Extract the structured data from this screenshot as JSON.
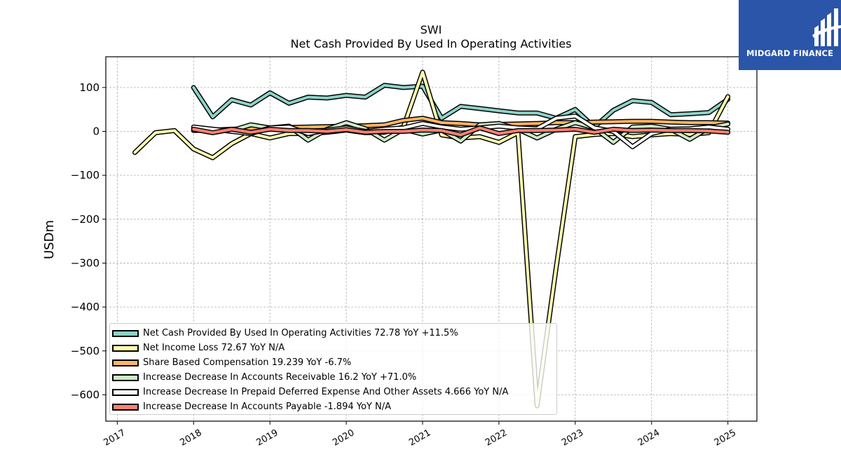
{
  "brand": {
    "logo_text": "MIDGARD FINANCE",
    "logo_color": "#2a55a8"
  },
  "chart_data": {
    "type": "line",
    "title": "SWI",
    "subtitle": "Net Cash Provided By Used In Operating Activities",
    "ylabel": "USDm",
    "xlabel": "",
    "ylim": [
      -660,
      170
    ],
    "xlim": [
      2016.85,
      2025.38
    ],
    "xticks": [
      2017,
      2018,
      2019,
      2020,
      2021,
      2022,
      2023,
      2024,
      2025
    ],
    "xtick_labels": [
      "2017",
      "2018",
      "2019",
      "2020",
      "2021",
      "2022",
      "2023",
      "2024",
      "2025"
    ],
    "yticks": [
      100,
      0,
      -100,
      -200,
      -300,
      -400,
      -500,
      -600
    ],
    "ytick_labels": [
      "100",
      "0",
      "−100",
      "−200",
      "−300",
      "−400",
      "−500",
      "−600"
    ],
    "grid": true,
    "legend_position": "lower-left",
    "series": [
      {
        "name": "Net Cash Provided By Used In Operating Activities",
        "legend": "Net Cash Provided By Used In Operating Activities  72.78 YoY +11.5%",
        "color": "#8dd3c7",
        "x": [
          2018.0,
          2018.25,
          2018.5,
          2018.75,
          2019.0,
          2019.25,
          2019.5,
          2019.75,
          2020.0,
          2020.25,
          2020.5,
          2020.75,
          2021.0,
          2021.25,
          2021.5,
          2021.75,
          2022.0,
          2022.25,
          2022.5,
          2022.75,
          2023.0,
          2023.25,
          2023.5,
          2023.75,
          2024.0,
          2024.25,
          2024.5,
          2024.75,
          2025.0
        ],
        "y": [
          100,
          33,
          72,
          60,
          88,
          64,
          78,
          76,
          82,
          78,
          105,
          100,
          103,
          30,
          57,
          52,
          47,
          42,
          42,
          30,
          50,
          10,
          48,
          70,
          66,
          38,
          40,
          43,
          73
        ]
      },
      {
        "name": "Net Income Loss",
        "legend": "Net Income Loss  72.67 YoY N/A",
        "color": "#ffffb3",
        "x": [
          2017.23,
          2017.5,
          2017.75,
          2018.0,
          2018.25,
          2018.5,
          2018.75,
          2019.0,
          2019.25,
          2019.5,
          2019.75,
          2020.0,
          2020.25,
          2020.5,
          2020.75,
          2021.0,
          2021.25,
          2021.5,
          2021.75,
          2022.0,
          2022.25,
          2022.5,
          2022.75,
          2023.0,
          2023.25,
          2023.5,
          2023.75,
          2024.0,
          2024.25,
          2024.5,
          2024.75,
          2025.0
        ],
        "y": [
          -48,
          -3,
          2,
          -40,
          -60,
          -28,
          -5,
          -15,
          -5,
          -5,
          -2,
          3,
          -3,
          -2,
          10,
          135,
          -8,
          -15,
          -12,
          -25,
          -3,
          -625,
          -310,
          -12,
          -7,
          -5,
          -12,
          -8,
          -5,
          -7,
          -3,
          79
        ]
      },
      {
        "name": "Share Based Compensation",
        "legend": "Share Based Compensation  19.239 YoY -6.7%",
        "color": "#fdb462",
        "x": [
          2018.0,
          2018.25,
          2018.5,
          2018.75,
          2019.0,
          2019.25,
          2019.5,
          2019.75,
          2020.0,
          2020.25,
          2020.5,
          2020.75,
          2021.0,
          2021.25,
          2021.5,
          2021.75,
          2022.0,
          2022.25,
          2022.5,
          2022.75,
          2023.0,
          2023.25,
          2023.5,
          2023.75,
          2024.0,
          2024.25,
          2024.5,
          2024.75,
          2025.0
        ],
        "y": [
          2,
          3,
          5,
          6,
          8,
          9,
          10,
          11,
          12,
          13,
          15,
          25,
          30,
          20,
          18,
          15,
          16,
          17,
          18,
          20,
          20,
          21,
          22,
          23,
          23,
          21,
          20,
          20,
          19
        ]
      },
      {
        "name": "Increase Decrease In Accounts Receivable",
        "legend": "Increase Decrease In Accounts Receivable  16.2 YoY +71.0%",
        "color": "#ccebc5",
        "x": [
          2018.0,
          2018.25,
          2018.5,
          2018.75,
          2019.0,
          2019.25,
          2019.5,
          2019.75,
          2020.0,
          2020.25,
          2020.5,
          2020.75,
          2021.0,
          2021.25,
          2021.5,
          2021.75,
          2022.0,
          2022.25,
          2022.5,
          2022.75,
          2023.0,
          2023.25,
          2023.5,
          2023.75,
          2024.0,
          2024.25,
          2024.5,
          2024.75,
          2025.0
        ],
        "y": [
          6,
          4,
          2,
          15,
          8,
          12,
          -20,
          5,
          20,
          6,
          -20,
          5,
          -6,
          3,
          -22,
          15,
          18,
          5,
          -15,
          5,
          20,
          8,
          -25,
          10,
          12,
          5,
          -18,
          8,
          17
        ]
      },
      {
        "name": "Increase Decrease In Prepaid Deferred Expense And Other Assets",
        "legend": "Increase Decrease In Prepaid Deferred Expense And Other Assets  4.666 YoY N/A",
        "color": "#ffffff",
        "x": [
          2018.0,
          2018.25,
          2018.5,
          2018.75,
          2019.0,
          2019.25,
          2019.5,
          2019.75,
          2020.0,
          2020.25,
          2020.5,
          2020.75,
          2021.0,
          2021.25,
          2021.5,
          2021.75,
          2022.0,
          2022.25,
          2022.5,
          2022.75,
          2023.0,
          2023.25,
          2023.5,
          2023.75,
          2024.0,
          2024.25,
          2024.5,
          2024.75,
          2025.0
        ],
        "y": [
          10,
          5,
          0,
          -5,
          8,
          10,
          -5,
          3,
          8,
          0,
          5,
          8,
          18,
          10,
          5,
          8,
          12,
          8,
          6,
          30,
          35,
          8,
          0,
          -35,
          -5,
          5,
          6,
          10,
          5
        ]
      },
      {
        "name": "Increase Decrease In Accounts Payable",
        "legend": "Increase Decrease In Accounts Payable  -1.894 YoY N/A",
        "color": "#fb8072",
        "x": [
          2018.0,
          2018.25,
          2018.5,
          2018.75,
          2019.0,
          2019.25,
          2019.5,
          2019.75,
          2020.0,
          2020.25,
          2020.5,
          2020.75,
          2021.0,
          2021.25,
          2021.5,
          2021.75,
          2022.0,
          2022.25,
          2022.5,
          2022.75,
          2023.0,
          2023.25,
          2023.5,
          2023.75,
          2024.0,
          2024.25,
          2024.5,
          2024.75,
          2025.0
        ],
        "y": [
          5,
          -3,
          5,
          -2,
          5,
          2,
          2,
          0,
          4,
          -2,
          0,
          0,
          3,
          2,
          -8,
          8,
          -5,
          2,
          2,
          3,
          5,
          -2,
          5,
          2,
          3,
          2,
          2,
          1,
          -2
        ]
      }
    ]
  }
}
